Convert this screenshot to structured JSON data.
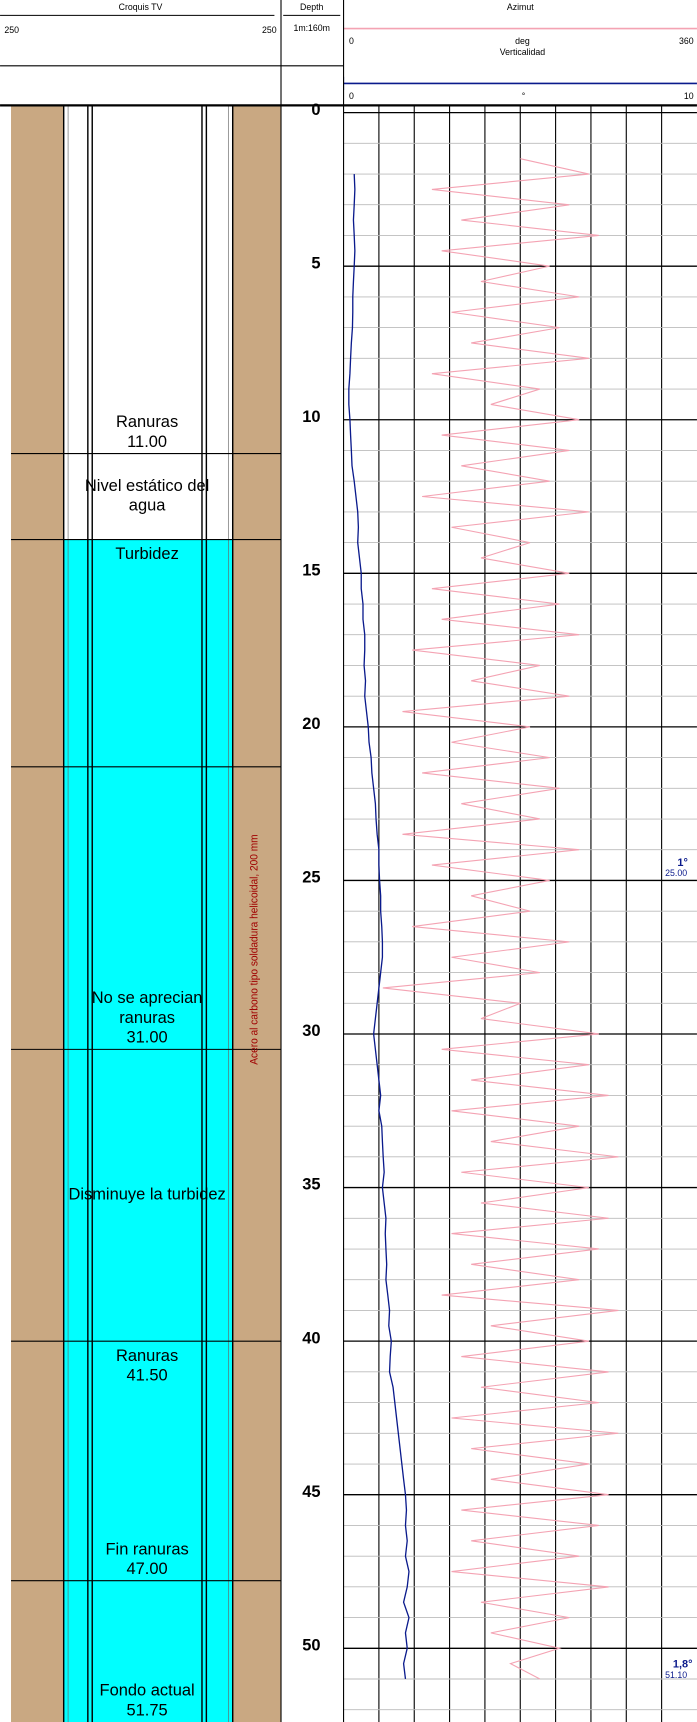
{
  "croquis": {
    "title": "Croquis TV",
    "left_label": "250",
    "right_label": "250",
    "water_top": 13.9,
    "note": "Acero al carbono tipo soldadura helicoidal, 200 mm",
    "note_range": [
      23.5,
      31
    ],
    "intervals": [
      {
        "bottom": 11.1,
        "texts": [
          {
            "lines": [
              "Ranuras",
              "11.00"
            ],
            "align": "bottom"
          }
        ]
      },
      {
        "bottom": 13.9,
        "texts": [
          {
            "lines": [
              "Nivel estático del",
              "agua"
            ],
            "align": "middle"
          }
        ]
      },
      {
        "bottom": 21.3,
        "texts": [
          {
            "lines": [
              "Turbidez"
            ],
            "align": "top"
          }
        ]
      },
      {
        "bottom": 30.5,
        "texts": [
          {
            "lines": [
              "No se aprecian",
              "ranuras",
              "31.00"
            ],
            "align": "bottom"
          }
        ]
      },
      {
        "bottom": 40.0,
        "texts": [
          {
            "lines": [
              "Disminuye la turbidez"
            ],
            "align": "middle"
          }
        ]
      },
      {
        "bottom": 47.8,
        "texts": [
          {
            "lines": [
              "Ranuras",
              "41.50"
            ],
            "align": "top"
          },
          {
            "lines": [
              "Fin ranuras",
              "47.00"
            ],
            "align": "bottom"
          }
        ]
      },
      {
        "bottom": 52.4,
        "texts": [
          {
            "lines": [
              "Fondo actual",
              "51.75"
            ],
            "align": "bottom"
          }
        ]
      }
    ]
  },
  "chart_data": {
    "type": "line",
    "depth_title": "Depth",
    "scale_label": "1m:160m",
    "xlim": [
      -0.2,
      52.4
    ],
    "xticks": [
      0,
      5,
      10,
      15,
      20,
      25,
      30,
      35,
      40,
      45,
      50
    ],
    "ylim": [
      0,
      360
    ],
    "yticks": [
      0,
      360
    ],
    "y_unit": "deg",
    "y2lim": [
      0,
      10
    ],
    "y2ticks": [
      0,
      10
    ],
    "y2_unit": "°",
    "x": [
      1.5,
      2,
      2.5,
      3,
      3.5,
      4,
      4.5,
      5,
      5.5,
      6,
      6.5,
      7,
      7.5,
      8,
      8.5,
      9,
      9.5,
      10,
      10.5,
      11,
      11.5,
      12,
      12.5,
      13,
      13.5,
      14,
      14.5,
      15,
      15.5,
      16,
      16.5,
      17,
      17.5,
      18,
      18.5,
      19,
      19.5,
      20,
      20.5,
      21,
      21.5,
      22,
      22.5,
      23,
      23.5,
      24,
      24.5,
      25,
      25.5,
      26,
      26.5,
      27,
      27.5,
      28,
      28.5,
      29,
      29.5,
      30,
      30.5,
      31,
      31.5,
      32,
      32.5,
      33,
      33.5,
      34,
      34.5,
      35,
      35.5,
      36,
      36.5,
      37,
      37.5,
      38,
      38.5,
      39,
      39.5,
      40,
      40.5,
      41,
      41.5,
      42,
      42.5,
      43,
      43.5,
      44,
      44.5,
      45,
      45.5,
      46,
      46.5,
      47,
      47.5,
      48,
      48.5,
      49,
      49.5,
      50,
      50.5,
      51
    ],
    "series": [
      {
        "name": "Azimut",
        "color": "#f4a3b3",
        "axis": "y",
        "values": [
          180,
          250,
          90,
          230,
          120,
          260,
          100,
          210,
          140,
          240,
          110,
          220,
          130,
          250,
          90,
          200,
          150,
          240,
          100,
          230,
          120,
          210,
          80,
          250,
          110,
          190,
          140,
          230,
          90,
          220,
          100,
          240,
          70,
          200,
          130,
          230,
          60,
          190,
          110,
          210,
          80,
          220,
          120,
          200,
          60,
          240,
          90,
          210,
          130,
          190,
          70,
          230,
          110,
          200,
          40,
          180,
          140,
          260,
          100,
          250,
          130,
          270,
          110,
          240,
          150,
          280,
          120,
          250,
          140,
          270,
          110,
          260,
          130,
          240,
          100,
          280,
          150,
          250,
          120,
          270,
          140,
          260,
          110,
          280,
          130,
          250,
          150,
          270,
          120,
          260,
          130,
          240,
          110,
          270,
          140,
          230,
          150,
          220,
          170,
          200
        ]
      },
      {
        "name": "Verticalidad",
        "color": "#0a1a8c",
        "axis": "y2",
        "values": [
          null,
          0.3,
          0.32,
          0.3,
          0.28,
          0.3,
          0.32,
          0.3,
          0.28,
          0.26,
          0.26,
          0.25,
          0.22,
          0.2,
          0.18,
          0.15,
          0.15,
          0.18,
          0.2,
          0.22,
          0.24,
          0.3,
          0.35,
          0.4,
          0.42,
          0.4,
          0.45,
          0.5,
          0.5,
          0.55,
          0.55,
          0.6,
          0.6,
          0.58,
          0.62,
          0.6,
          0.65,
          0.7,
          0.72,
          0.78,
          0.8,
          0.85,
          0.9,
          0.92,
          0.95,
          1.0,
          1.0,
          1.02,
          1.05,
          1.05,
          1.08,
          1.1,
          1.1,
          1.05,
          1.0,
          0.95,
          0.9,
          0.85,
          0.9,
          0.95,
          1.0,
          1.05,
          1.0,
          1.08,
          1.1,
          1.12,
          1.15,
          1.1,
          1.15,
          1.2,
          1.18,
          1.2,
          1.22,
          1.2,
          1.25,
          1.3,
          1.28,
          1.35,
          1.32,
          1.3,
          1.4,
          1.45,
          1.5,
          1.55,
          1.6,
          1.65,
          1.7,
          1.75,
          1.78,
          1.75,
          1.8,
          1.75,
          1.85,
          1.8,
          1.7,
          1.85,
          1.75,
          1.8,
          1.7,
          1.75
        ]
      }
    ],
    "annotations": [
      {
        "text": "1°",
        "depth": {
          "value": 25,
          "label": "25.00"
        }
      },
      {
        "text": "1,8°",
        "depth": {
          "value": 51.1,
          "label": "51.10"
        }
      }
    ],
    "grid": true
  }
}
